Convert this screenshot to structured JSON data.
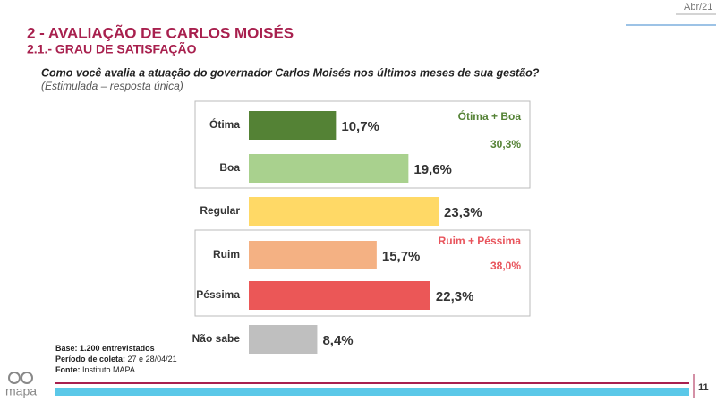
{
  "slide": {
    "date": "Abr/21",
    "title": "2 - AVALIAÇÃO DE CARLOS MOISÉS",
    "subtitle": "2.1.- GRAU DE SATISFAÇÃO",
    "question": "Como você avalia a atuação do governador Carlos Moisés nos últimos meses de sua gestão?",
    "question_note": "(Estimulada – resposta única)",
    "notes": [
      {
        "label": "Base:",
        "text": "1.200 entrevistados"
      },
      {
        "label": "Período de coleta:",
        "text": "27 e 28/04/21"
      },
      {
        "label": "Fonte:",
        "text": "Instituto MAPA"
      }
    ],
    "logo": "mapa",
    "page": "11"
  },
  "chart_data": {
    "type": "hbar",
    "categories": [
      "Ótima",
      "Boa",
      "Regular",
      "Ruim",
      "Péssima",
      "Não sabe"
    ],
    "values": [
      10.7,
      19.6,
      23.3,
      15.7,
      22.3,
      8.4
    ],
    "value_labels": [
      "10,7%",
      "19,6%",
      "23,3%",
      "15,7%",
      "22,3%",
      "8,4%"
    ],
    "colors": [
      "#548235",
      "#a9d18e",
      "#ffd966",
      "#f4b183",
      "#eb5757",
      "#bfbfbf"
    ],
    "groups": [
      {
        "label": "Ótima + Boa",
        "total": "30,3%",
        "color": "#548235"
      },
      {
        "label": "Ruim + Péssima",
        "total": "38,0%",
        "color": "#e8545c"
      }
    ]
  }
}
